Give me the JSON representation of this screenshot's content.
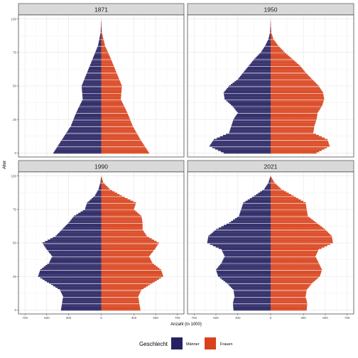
{
  "chart_data": {
    "type": "bar",
    "subtype": "population-pyramid",
    "facets": [
      "1871",
      "1950",
      "1990",
      "2021"
    ],
    "ylabel": "Alter",
    "xlabel": "Anzahl (in 1000)",
    "x_ticks": [
      -700,
      -500,
      -300,
      0,
      300,
      500,
      700
    ],
    "x_tick_labels": [
      "700",
      "500",
      "300",
      "0",
      "300",
      "500",
      "700"
    ],
    "xlim": [
      -760,
      760
    ],
    "y_ticks": [
      0,
      25,
      50,
      75,
      100
    ],
    "y_tick_labels": [
      "0",
      "25",
      "50",
      "75",
      "100"
    ],
    "ylim": [
      -3,
      103
    ],
    "grid": true,
    "legend": {
      "title": "Geschlecht",
      "position": "bottom",
      "entries": [
        {
          "label": "Männer",
          "color": "#262262"
        },
        {
          "label": "Frauen",
          "color": "#d9421b"
        }
      ]
    },
    "series": [
      {
        "facet": "1871",
        "age_keys": [
          0,
          10,
          20,
          30,
          40,
          50,
          60,
          70,
          80,
          90,
          100
        ],
        "men": [
          440,
          360,
          280,
          230,
          170,
          180,
          130,
          80,
          30,
          5,
          0
        ],
        "women": [
          440,
          360,
          290,
          240,
          180,
          190,
          140,
          90,
          35,
          6,
          0
        ]
      },
      {
        "facet": "1950",
        "age_keys": [
          0,
          5,
          10,
          15,
          20,
          25,
          30,
          35,
          40,
          45,
          50,
          55,
          60,
          65,
          70,
          75,
          80,
          85,
          90,
          100
        ],
        "men": [
          430,
          560,
          520,
          380,
          360,
          340,
          300,
          350,
          420,
          430,
          380,
          300,
          250,
          200,
          150,
          90,
          50,
          20,
          5,
          0
        ],
        "women": [
          420,
          540,
          520,
          390,
          400,
          420,
          430,
          470,
          490,
          480,
          440,
          380,
          320,
          270,
          200,
          130,
          70,
          25,
          6,
          0
        ]
      },
      {
        "facet": "1990",
        "age_keys": [
          0,
          10,
          15,
          20,
          25,
          30,
          35,
          40,
          45,
          50,
          55,
          60,
          65,
          70,
          75,
          80,
          85,
          90,
          95,
          100
        ],
        "men": [
          370,
          350,
          380,
          480,
          580,
          560,
          480,
          450,
          500,
          540,
          420,
          360,
          300,
          250,
          150,
          130,
          60,
          25,
          8,
          0
        ],
        "women": [
          360,
          340,
          370,
          470,
          570,
          550,
          470,
          440,
          490,
          530,
          420,
          380,
          380,
          370,
          300,
          320,
          190,
          80,
          20,
          0
        ]
      },
      {
        "facet": "2021",
        "age_keys": [
          0,
          5,
          10,
          15,
          20,
          25,
          30,
          35,
          40,
          45,
          50,
          55,
          60,
          65,
          70,
          75,
          80,
          85,
          90,
          95,
          100
        ],
        "men": [
          340,
          345,
          330,
          340,
          400,
          480,
          500,
          450,
          420,
          450,
          580,
          570,
          500,
          380,
          290,
          270,
          250,
          150,
          60,
          20,
          0
        ],
        "women": [
          330,
          335,
          320,
          330,
          380,
          450,
          470,
          440,
          410,
          440,
          570,
          560,
          500,
          420,
          340,
          330,
          320,
          210,
          100,
          35,
          0
        ]
      }
    ]
  }
}
